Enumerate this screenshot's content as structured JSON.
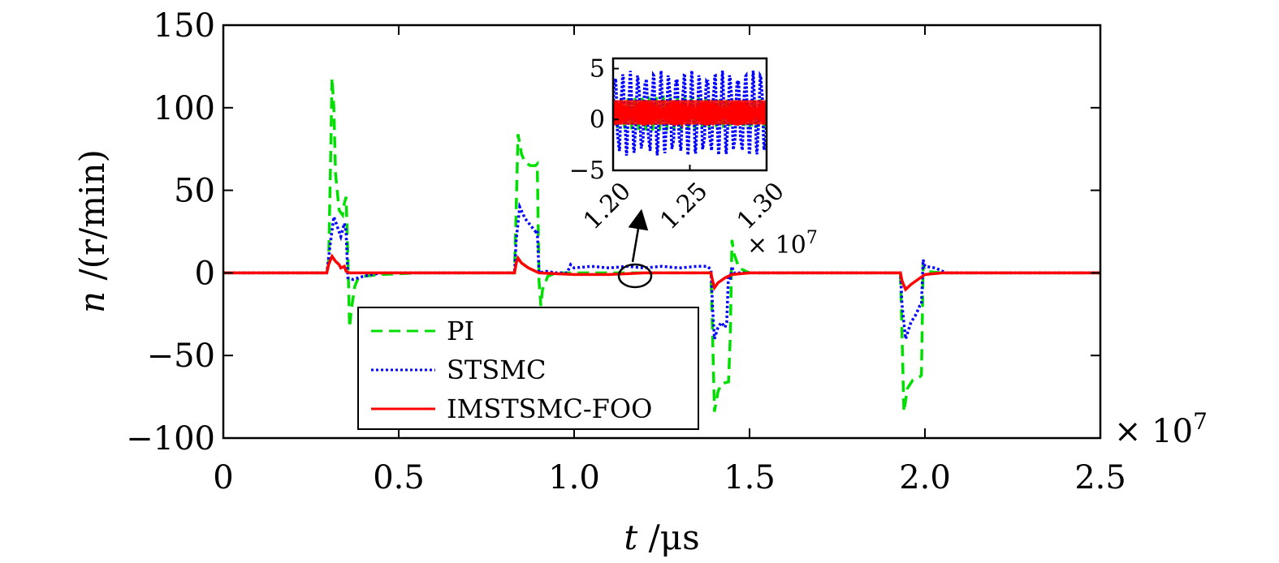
{
  "chart_data": {
    "type": "line",
    "xlabel_var": "t",
    "xlabel_unit": " /μs",
    "ylabel_var": "n",
    "ylabel_unit": " /(r/min)",
    "x_exponent_label": "× 10",
    "x_exponent_power": "7",
    "xlim": [
      0,
      2.5
    ],
    "ylim": [
      -100,
      150
    ],
    "x_ticks": [
      0,
      0.5,
      1.0,
      1.5,
      2.0,
      2.5
    ],
    "x_tick_labels": [
      "0",
      "0.5",
      "1.0",
      "1.5",
      "2.0",
      "2.5"
    ],
    "y_ticks": [
      -100,
      -50,
      0,
      50,
      100,
      150
    ],
    "y_tick_labels": [
      "−100",
      "−50",
      "0",
      "50",
      "100",
      "150"
    ],
    "grid": false,
    "legend_position": "bottom-left",
    "series": [
      {
        "name": "PI",
        "color": "#00e000",
        "style": "dashed",
        "points": [
          [
            0,
            0
          ],
          [
            0.295,
            0
          ],
          [
            0.3,
            5
          ],
          [
            0.305,
            60
          ],
          [
            0.31,
            118
          ],
          [
            0.315,
            100
          ],
          [
            0.32,
            60
          ],
          [
            0.33,
            38
          ],
          [
            0.34,
            35
          ],
          [
            0.345,
            42
          ],
          [
            0.35,
            46
          ],
          [
            0.355,
            10
          ],
          [
            0.36,
            -33
          ],
          [
            0.365,
            -22
          ],
          [
            0.375,
            -8
          ],
          [
            0.385,
            -3
          ],
          [
            0.4,
            -2
          ],
          [
            0.45,
            -1
          ],
          [
            0.55,
            0
          ],
          [
            0.7,
            0
          ],
          [
            0.83,
            0
          ],
          [
            0.835,
            40
          ],
          [
            0.84,
            84
          ],
          [
            0.85,
            72
          ],
          [
            0.86,
            67
          ],
          [
            0.875,
            65
          ],
          [
            0.89,
            65
          ],
          [
            0.895,
            66
          ],
          [
            0.9,
            -5
          ],
          [
            0.905,
            -20
          ],
          [
            0.91,
            -10
          ],
          [
            0.925,
            -2
          ],
          [
            0.95,
            0
          ],
          [
            1.0,
            0
          ],
          [
            1.39,
            0
          ],
          [
            1.395,
            -40
          ],
          [
            1.4,
            -84
          ],
          [
            1.41,
            -72
          ],
          [
            1.42,
            -67
          ],
          [
            1.44,
            -66
          ],
          [
            1.445,
            -40
          ],
          [
            1.45,
            20
          ],
          [
            1.455,
            12
          ],
          [
            1.47,
            3
          ],
          [
            1.5,
            0
          ],
          [
            1.93,
            0
          ],
          [
            1.935,
            -40
          ],
          [
            1.94,
            -84
          ],
          [
            1.95,
            -70
          ],
          [
            1.965,
            -65
          ],
          [
            1.985,
            -63
          ],
          [
            1.99,
            -62
          ],
          [
            1.995,
            5
          ],
          [
            2.0,
            1
          ],
          [
            2.05,
            0
          ],
          [
            2.5,
            0
          ]
        ]
      },
      {
        "name": "STSMC",
        "color": "#0000ff",
        "style": "dotted",
        "points": [
          [
            0,
            0
          ],
          [
            0.295,
            0
          ],
          [
            0.305,
            18
          ],
          [
            0.315,
            34
          ],
          [
            0.325,
            28
          ],
          [
            0.335,
            22
          ],
          [
            0.345,
            30
          ],
          [
            0.35,
            25
          ],
          [
            0.355,
            -3
          ],
          [
            0.37,
            -4
          ],
          [
            0.4,
            -2
          ],
          [
            0.45,
            0
          ],
          [
            0.55,
            0
          ],
          [
            0.65,
            0
          ],
          [
            0.83,
            0
          ],
          [
            0.835,
            20
          ],
          [
            0.845,
            40
          ],
          [
            0.86,
            33
          ],
          [
            0.875,
            29
          ],
          [
            0.89,
            25
          ],
          [
            0.895,
            26
          ],
          [
            0.9,
            0
          ],
          [
            0.92,
            1
          ],
          [
            0.95,
            0
          ],
          [
            0.98,
            0
          ],
          [
            0.99,
            5
          ],
          [
            1.0,
            3
          ],
          [
            1.05,
            4
          ],
          [
            1.1,
            3
          ],
          [
            1.15,
            4
          ],
          [
            1.2,
            3
          ],
          [
            1.25,
            4
          ],
          [
            1.3,
            3
          ],
          [
            1.35,
            4
          ],
          [
            1.38,
            4
          ],
          [
            1.39,
            2
          ],
          [
            1.395,
            -22
          ],
          [
            1.4,
            -40
          ],
          [
            1.41,
            -33
          ],
          [
            1.42,
            -30
          ],
          [
            1.43,
            -33
          ],
          [
            1.435,
            -30
          ],
          [
            1.44,
            -1
          ],
          [
            1.445,
            -4
          ],
          [
            1.45,
            4
          ],
          [
            1.455,
            0
          ],
          [
            1.47,
            0
          ],
          [
            1.5,
            0
          ],
          [
            1.93,
            0
          ],
          [
            1.935,
            -20
          ],
          [
            1.945,
            -40
          ],
          [
            1.96,
            -30
          ],
          [
            1.975,
            -25
          ],
          [
            1.985,
            -20
          ],
          [
            1.99,
            -19
          ],
          [
            1.995,
            8
          ],
          [
            2.0,
            4
          ],
          [
            2.03,
            3
          ],
          [
            2.06,
            0
          ],
          [
            2.5,
            0
          ]
        ]
      },
      {
        "name": "IMSTSMC-FOO",
        "color": "#ff0000",
        "style": "solid",
        "points": [
          [
            0,
            0
          ],
          [
            0.295,
            0
          ],
          [
            0.3,
            5
          ],
          [
            0.31,
            10
          ],
          [
            0.32,
            7
          ],
          [
            0.33,
            5
          ],
          [
            0.335,
            3
          ],
          [
            0.345,
            4
          ],
          [
            0.35,
            1
          ],
          [
            0.36,
            0
          ],
          [
            0.83,
            0
          ],
          [
            0.835,
            6
          ],
          [
            0.84,
            9
          ],
          [
            0.85,
            6
          ],
          [
            0.87,
            3
          ],
          [
            0.9,
            0
          ],
          [
            1.0,
            -1
          ],
          [
            1.1,
            -1
          ],
          [
            1.2,
            0
          ],
          [
            1.3,
            0
          ],
          [
            1.39,
            0
          ],
          [
            1.395,
            -5
          ],
          [
            1.4,
            -9
          ],
          [
            1.41,
            -6
          ],
          [
            1.43,
            -3
          ],
          [
            1.45,
            -1
          ],
          [
            1.5,
            0
          ],
          [
            1.93,
            0
          ],
          [
            1.935,
            -5
          ],
          [
            1.945,
            -10
          ],
          [
            1.96,
            -7
          ],
          [
            1.98,
            -4
          ],
          [
            2.0,
            -1
          ],
          [
            2.05,
            0
          ],
          [
            2.5,
            0
          ]
        ]
      }
    ],
    "inset": {
      "xlim": [
        1.2,
        1.3
      ],
      "ylim": [
        -5,
        6
      ],
      "x_ticks": [
        1.2,
        1.25,
        1.3
      ],
      "x_tick_labels": [
        "1.20",
        "1.25",
        "1.30"
      ],
      "y_ticks": [
        -5,
        0,
        5
      ],
      "y_tick_labels": [
        "−5",
        "0",
        "5"
      ],
      "x_exponent_label": "× 10",
      "x_exponent_power": "7",
      "zoom_center": [
        1.175,
        -1
      ]
    }
  }
}
